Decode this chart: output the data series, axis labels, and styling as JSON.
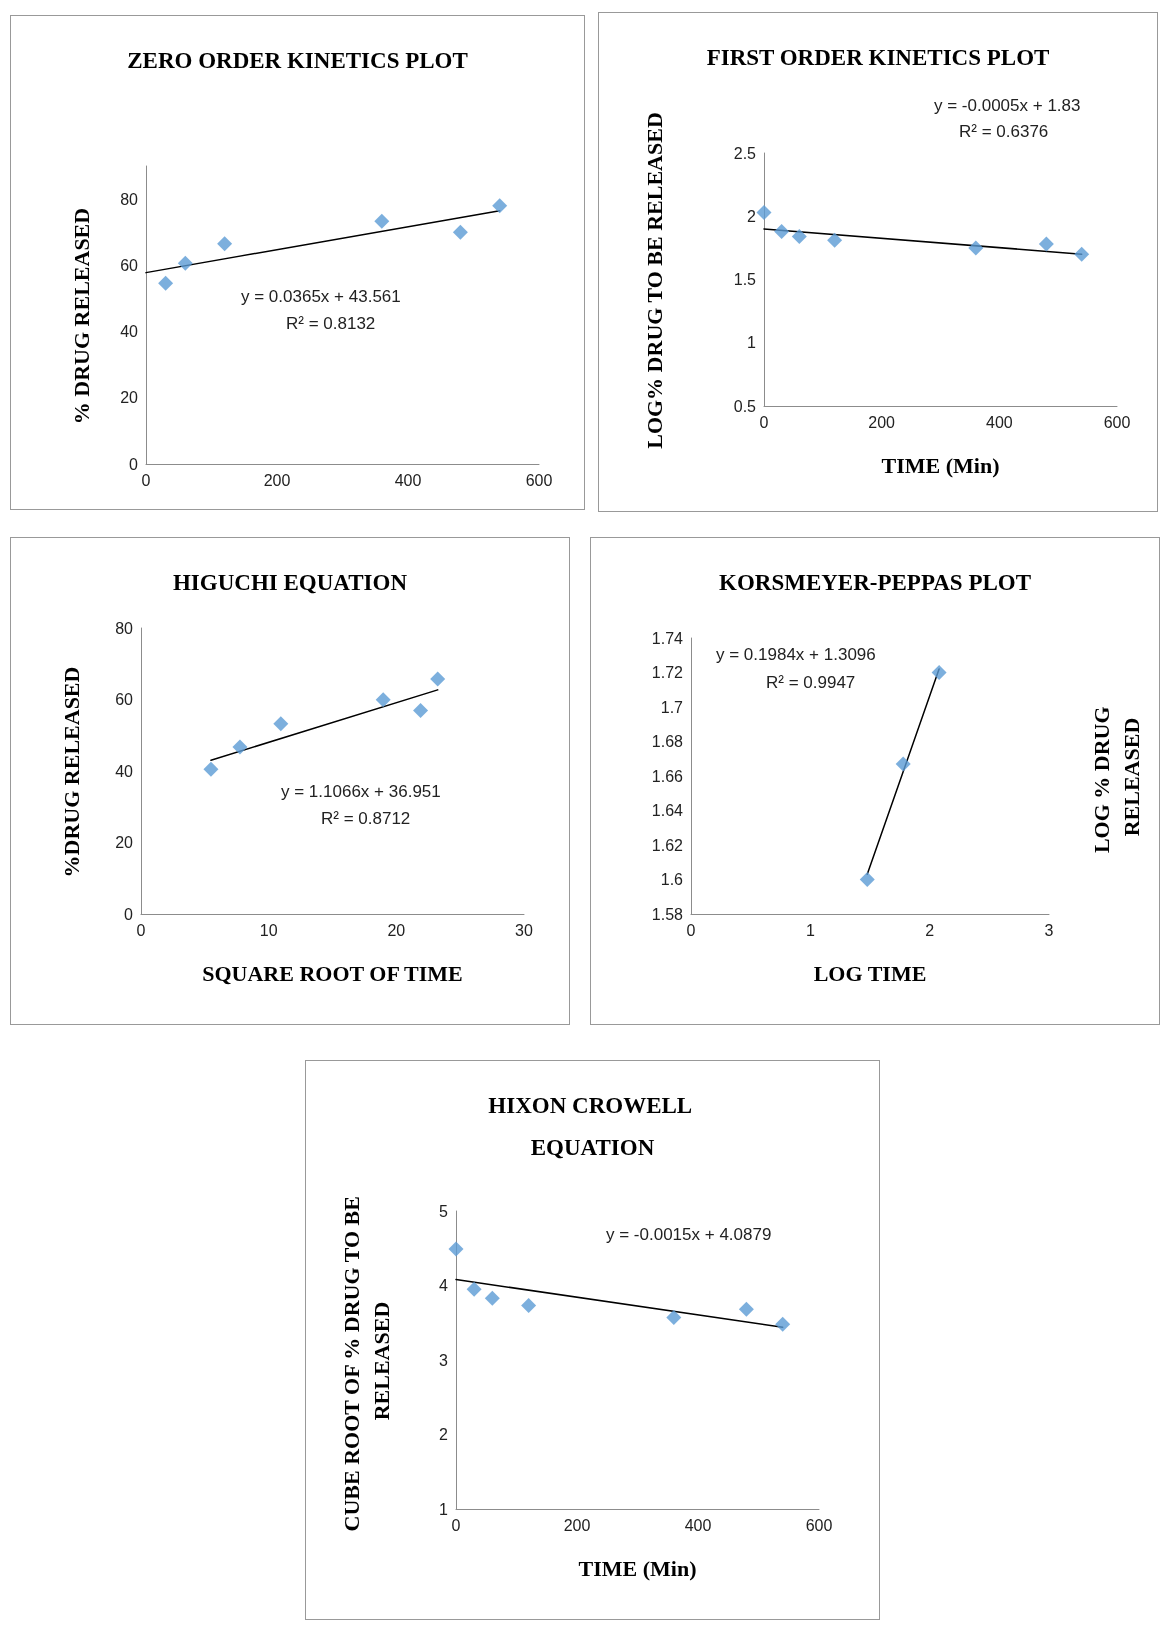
{
  "chart_data": [
    {
      "type": "scatter",
      "title": "ZERO ORDER KINETICS PLOT",
      "ylabel": "% DRUG RELEASED",
      "xlim": [
        0,
        600
      ],
      "xticks": [
        0,
        200,
        400,
        600
      ],
      "ylim": [
        0,
        90
      ],
      "yticks": [
        0,
        20,
        40,
        60,
        80
      ],
      "marker": "diamond",
      "annotations": [
        "y = 0.0365x + 43.561",
        "R² = 0.8132"
      ],
      "series": [
        {
          "color": "#5b9bd5",
          "x": [
            30,
            60,
            120,
            360,
            480,
            540
          ],
          "values": [
            54.6,
            60.6,
            66.5,
            73.3,
            70,
            78
          ]
        },
        {
          "type": "line",
          "color": "#000000",
          "x": [
            0,
            540
          ],
          "values": [
            57.8,
            76.5
          ],
          "marker": "none"
        }
      ]
    },
    {
      "type": "scatter",
      "title": "FIRST ORDER KINETICS PLOT",
      "xlabel": "TIME (Min)",
      "ylabel": "LOG% DRUG TO BE RELEASED",
      "xlim": [
        0,
        600
      ],
      "xticks": [
        0,
        200,
        400,
        600
      ],
      "ylim": [
        0.5,
        2.5
      ],
      "yticks": [
        0.5,
        1,
        1.5,
        2,
        2.5
      ],
      "marker": "diamond",
      "annotations": [
        "y = -0.0005x + 1.83",
        "R² = 0.6376"
      ],
      "series": [
        {
          "color": "#5b9bd5",
          "x": [
            0,
            30,
            60,
            120,
            360,
            480,
            540
          ],
          "values": [
            2.03,
            1.88,
            1.84,
            1.81,
            1.75,
            1.78,
            1.7
          ]
        },
        {
          "type": "line",
          "color": "#000000",
          "x": [
            0,
            540
          ],
          "values": [
            1.9,
            1.7
          ],
          "marker": "none"
        }
      ]
    },
    {
      "type": "scatter",
      "title": "HIGUCHI EQUATION",
      "xlabel": "SQUARE ROOT OF TIME",
      "ylabel": "%DRUG RELEASED",
      "xlim": [
        0,
        30
      ],
      "xticks": [
        0,
        10,
        20,
        30
      ],
      "ylim": [
        0,
        80
      ],
      "yticks": [
        0,
        20,
        40,
        60,
        80
      ],
      "marker": "diamond",
      "annotations": [
        "y = 1.1066x + 36.951",
        "R² = 0.8712"
      ],
      "series": [
        {
          "color": "#5b9bd5",
          "x": [
            5.48,
            7.75,
            10.95,
            18.97,
            21.9,
            23.24
          ],
          "values": [
            40.5,
            46.7,
            53.2,
            59.9,
            56.9,
            65.7
          ]
        },
        {
          "type": "line",
          "color": "#000000",
          "x": [
            5.48,
            23.24
          ],
          "values": [
            43,
            62.7
          ],
          "marker": "none"
        }
      ]
    },
    {
      "type": "scatter",
      "title": "KORSMEYER-PEPPAS PLOT",
      "xlabel": "LOG TIME",
      "ylabel": "LOG % DRUG RELEASED",
      "xlim": [
        0,
        3
      ],
      "xticks": [
        0,
        1,
        2,
        3
      ],
      "ylim": [
        1.58,
        1.74
      ],
      "yticks": [
        1.58,
        1.6,
        1.62,
        1.64,
        1.66,
        1.68,
        1.7,
        1.72,
        1.74
      ],
      "marker": "diamond",
      "annotations": [
        "y = 0.1984x + 1.3096",
        "R² = 0.9947"
      ],
      "series": [
        {
          "color": "#5b9bd5",
          "x": [
            1.477,
            1.778,
            2.079
          ],
          "values": [
            1.6,
            1.667,
            1.72
          ]
        },
        {
          "type": "line",
          "color": "#000000",
          "x": [
            1.477,
            2.079
          ],
          "values": [
            1.603,
            1.722
          ],
          "marker": "none"
        }
      ]
    },
    {
      "type": "scatter",
      "title": "HIXON CROWELL EQUATION",
      "xlabel": "TIME (Min)",
      "ylabel": "CUBE ROOT OF % DRUG TO BE RELEASED",
      "xlim": [
        0,
        600
      ],
      "xticks": [
        0,
        200,
        400,
        600
      ],
      "ylim": [
        1,
        5
      ],
      "yticks": [
        1,
        2,
        3,
        4,
        5
      ],
      "marker": "diamond",
      "annotations": [
        "y = -0.0015x + 4.0879"
      ],
      "series": [
        {
          "color": "#5b9bd5",
          "x": [
            0,
            30,
            60,
            120,
            360,
            480,
            540
          ],
          "values": [
            4.49,
            3.95,
            3.83,
            3.73,
            3.57,
            3.68,
            3.48
          ]
        },
        {
          "type": "line",
          "color": "#000000",
          "x": [
            0,
            540
          ],
          "values": [
            4.08,
            3.44
          ],
          "marker": "none"
        }
      ]
    }
  ]
}
